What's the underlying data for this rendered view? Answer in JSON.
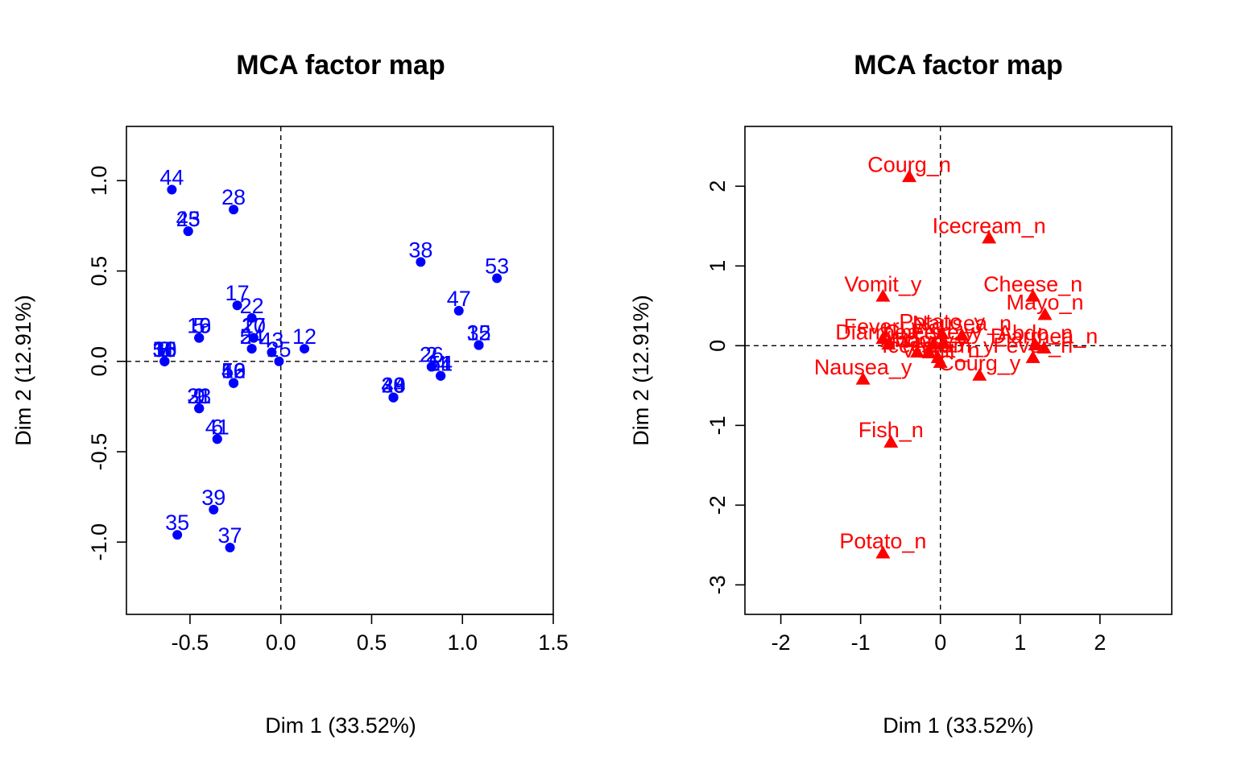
{
  "chart_data": [
    {
      "type": "scatter",
      "title": "MCA factor map",
      "xlabel": "Dim 1 (33.52%)",
      "ylabel": "Dim 2 (12.91%)",
      "xlim": [
        -0.85,
        1.5
      ],
      "ylim": [
        -1.4,
        1.3
      ],
      "xticks": [
        -0.5,
        0.0,
        0.5,
        1.0,
        1.5
      ],
      "yticks": [
        -1.0,
        -0.5,
        0.0,
        0.5,
        1.0
      ],
      "xtick_labels": [
        "-0.5",
        "0.0",
        "0.5",
        "1.0",
        "1.5"
      ],
      "ytick_labels": [
        "-1.0",
        "-0.5",
        "0.0",
        "0.5",
        "1.0"
      ],
      "reference_lines": {
        "x": 0,
        "y": 0
      },
      "marker": "circle",
      "color": "#0000ff",
      "points": [
        {
          "label": "44",
          "x": -0.6,
          "y": 0.95
        },
        {
          "label": "28",
          "x": -0.26,
          "y": 0.84
        },
        {
          "label": "23",
          "x": -0.51,
          "y": 0.72
        },
        {
          "label": "45",
          "x": -0.51,
          "y": 0.72
        },
        {
          "label": "17",
          "x": -0.24,
          "y": 0.31
        },
        {
          "label": "22",
          "x": -0.16,
          "y": 0.24
        },
        {
          "label": "16",
          "x": -0.45,
          "y": 0.13
        },
        {
          "label": "5",
          "x": -0.45,
          "y": 0.13
        },
        {
          "label": "19",
          "x": -0.45,
          "y": 0.13
        },
        {
          "label": "27",
          "x": -0.15,
          "y": 0.13
        },
        {
          "label": "10",
          "x": -0.15,
          "y": 0.13
        },
        {
          "label": "36",
          "x": -0.64,
          "y": 0.0
        },
        {
          "label": "8",
          "x": -0.64,
          "y": 0.0
        },
        {
          "label": "55",
          "x": -0.64,
          "y": 0.0
        },
        {
          "label": "3",
          "x": -0.64,
          "y": 0.0
        },
        {
          "label": "7",
          "x": -0.64,
          "y": 0.0
        },
        {
          "label": "24",
          "x": -0.16,
          "y": 0.07
        },
        {
          "label": "54",
          "x": -0.16,
          "y": 0.07
        },
        {
          "label": "43",
          "x": -0.05,
          "y": 0.05
        },
        {
          "label": "12",
          "x": 0.13,
          "y": 0.07
        },
        {
          "label": "25",
          "x": -0.01,
          "y": 0.0
        },
        {
          "label": "18",
          "x": -0.64,
          "y": 0.0
        },
        {
          "label": "11",
          "x": -0.64,
          "y": 0.0
        },
        {
          "label": "30",
          "x": -0.64,
          "y": 0.0
        },
        {
          "label": "52",
          "x": -0.26,
          "y": -0.12
        },
        {
          "label": "13",
          "x": -0.26,
          "y": -0.12
        },
        {
          "label": "50",
          "x": -0.26,
          "y": -0.12
        },
        {
          "label": "9",
          "x": -0.45,
          "y": -0.26
        },
        {
          "label": "21",
          "x": -0.45,
          "y": -0.26
        },
        {
          "label": "33",
          "x": -0.45,
          "y": -0.26
        },
        {
          "label": "46",
          "x": -0.26,
          "y": -0.12
        },
        {
          "label": "1",
          "x": -0.45,
          "y": -0.26
        },
        {
          "label": "41",
          "x": -0.35,
          "y": -0.43
        },
        {
          "label": "6",
          "x": -0.35,
          "y": -0.43
        },
        {
          "label": "38",
          "x": 0.77,
          "y": 0.55
        },
        {
          "label": "53",
          "x": 1.19,
          "y": 0.46
        },
        {
          "label": "47",
          "x": 0.98,
          "y": 0.28
        },
        {
          "label": "32",
          "x": 1.09,
          "y": 0.09
        },
        {
          "label": "15",
          "x": 1.09,
          "y": 0.09
        },
        {
          "label": "2",
          "x": 0.83,
          "y": -0.03
        },
        {
          "label": "26",
          "x": 0.83,
          "y": -0.03
        },
        {
          "label": "14",
          "x": 0.88,
          "y": -0.08
        },
        {
          "label": "48",
          "x": 0.62,
          "y": -0.2
        },
        {
          "label": "34",
          "x": 0.62,
          "y": -0.2
        },
        {
          "label": "4",
          "x": 0.88,
          "y": -0.08
        },
        {
          "label": "51",
          "x": 0.88,
          "y": -0.08
        },
        {
          "label": "29",
          "x": 0.62,
          "y": -0.2
        },
        {
          "label": "49",
          "x": 0.62,
          "y": -0.2
        },
        {
          "label": "20",
          "x": 0.62,
          "y": -0.2
        },
        {
          "label": "40",
          "x": 0.62,
          "y": -0.2
        },
        {
          "label": "39",
          "x": -0.37,
          "y": -0.82
        },
        {
          "label": "35",
          "x": -0.57,
          "y": -0.96
        },
        {
          "label": "37",
          "x": -0.28,
          "y": -1.03
        }
      ]
    },
    {
      "type": "scatter",
      "title": "MCA factor map",
      "xlabel": "Dim 1 (33.52%)",
      "ylabel": "Dim 2 (12.91%)",
      "xlim": [
        -2.45,
        2.9
      ],
      "ylim": [
        -3.37,
        2.75
      ],
      "xticks": [
        -2,
        -1,
        0,
        1,
        2
      ],
      "yticks": [
        -3,
        -2,
        -1,
        0,
        1,
        2
      ],
      "xtick_labels": [
        "-2",
        "-1",
        "0",
        "1",
        "2"
      ],
      "ytick_labels": [
        "-3",
        "-2",
        "-1",
        "0",
        "1",
        "2"
      ],
      "reference_lines": {
        "x": 0,
        "y": 0
      },
      "marker": "triangle",
      "color": "#ff0000",
      "points": [
        {
          "label": "Courg_n",
          "x": -0.39,
          "y": 2.12
        },
        {
          "label": "Icecream_n",
          "x": 0.61,
          "y": 1.35
        },
        {
          "label": "Vomit_y",
          "x": -0.72,
          "y": 0.62
        },
        {
          "label": "Cheese_n",
          "x": 1.16,
          "y": 0.62
        },
        {
          "label": "Mayo_n",
          "x": 1.31,
          "y": 0.39
        },
        {
          "label": "Potato_y",
          "x": 0.02,
          "y": 0.15
        },
        {
          "label": "Nausea_n",
          "x": 0.27,
          "y": 0.13
        },
        {
          "label": "Fever_y",
          "x": -0.72,
          "y": 0.09
        },
        {
          "label": "Diarrhea_y",
          "x": -0.65,
          "y": 0.02
        },
        {
          "label": "Cheese_y",
          "x": -0.09,
          "y": 0.02
        },
        {
          "label": "Fish_y",
          "x": 0.03,
          "y": 0.03
        },
        {
          "label": "Abdo_n",
          "x": 1.19,
          "y": 0.01
        },
        {
          "label": "Abdo_y",
          "x": -0.29,
          "y": -0.08
        },
        {
          "label": "Mayo_y",
          "x": -0.14,
          "y": -0.09
        },
        {
          "label": "Diarrhea_n",
          "x": 1.3,
          "y": -0.03
        },
        {
          "label": "Icecream_y",
          "x": -0.03,
          "y": -0.15
        },
        {
          "label": "Courg_y",
          "x": 0.49,
          "y": -0.37
        },
        {
          "label": "Fever_n",
          "x": 1.16,
          "y": -0.15
        },
        {
          "label": "Vomit_n",
          "x": 0.0,
          "y": -0.21
        },
        {
          "label": "Nausea_y",
          "x": -0.97,
          "y": -0.42
        },
        {
          "label": "Fish_n",
          "x": -0.62,
          "y": -1.21
        },
        {
          "label": "Potato_n",
          "x": -0.72,
          "y": -2.6
        }
      ]
    }
  ]
}
